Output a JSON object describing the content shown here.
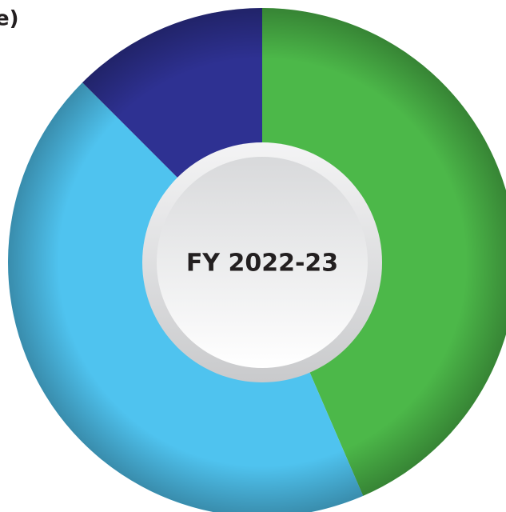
{
  "chart_data": {
    "type": "donut",
    "title": "e)",
    "center_label": "FY 2022-23",
    "values": [
      43.5,
      44,
      12.5
    ],
    "colors": [
      "#4cb849",
      "#4fc3ef",
      "#2e3192"
    ]
  }
}
